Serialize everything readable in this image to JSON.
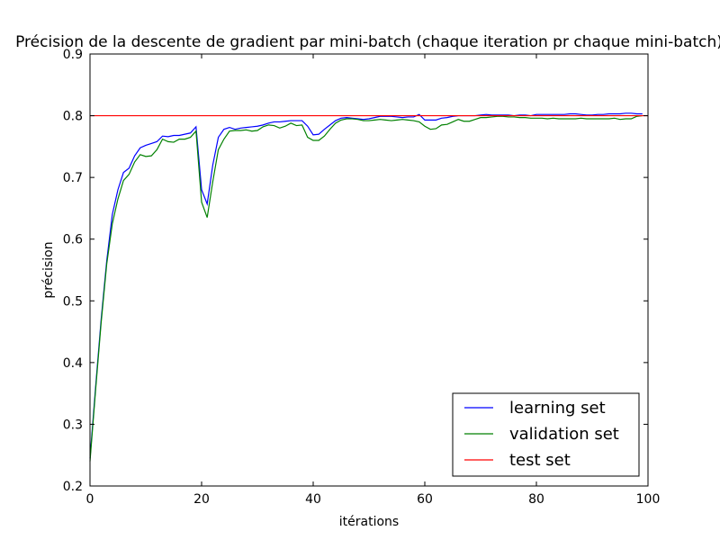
{
  "chart_data": {
    "type": "line",
    "title": "Précision de la descente de gradient par mini-batch (chaque iteration pr chaque mini-batch)",
    "xlabel": "itérations",
    "ylabel": "précision",
    "xlim": [
      0,
      100
    ],
    "ylim": [
      0.2,
      0.9
    ],
    "xticks": [
      "0",
      "20",
      "40",
      "60",
      "80",
      "100"
    ],
    "yticks": [
      "0.2",
      "0.3",
      "0.4",
      "0.5",
      "0.6",
      "0.7",
      "0.8",
      "0.9"
    ],
    "grid": false,
    "legend_position": "lower-right",
    "series": [
      {
        "name": "learning set",
        "color": "#0000ff",
        "x": [
          0,
          1,
          2,
          3,
          4,
          5,
          6,
          7,
          8,
          9,
          10,
          11,
          12,
          13,
          14,
          15,
          16,
          17,
          18,
          19,
          20,
          21,
          22,
          23,
          24,
          25,
          26,
          27,
          28,
          29,
          30,
          31,
          32,
          33,
          34,
          35,
          36,
          37,
          38,
          39,
          40,
          41,
          42,
          43,
          44,
          45,
          46,
          47,
          48,
          49,
          50,
          51,
          52,
          53,
          54,
          55,
          56,
          57,
          58,
          59,
          60,
          61,
          62,
          63,
          64,
          65,
          66,
          67,
          68,
          69,
          70,
          71,
          72,
          73,
          74,
          75,
          76,
          77,
          78,
          79,
          80,
          81,
          82,
          83,
          84,
          85,
          86,
          87,
          88,
          89,
          90,
          91,
          92,
          93,
          94,
          95,
          96,
          97,
          98,
          99
        ],
        "y": [
          0.245,
          0.36,
          0.47,
          0.565,
          0.64,
          0.68,
          0.708,
          0.715,
          0.735,
          0.748,
          0.752,
          0.755,
          0.758,
          0.767,
          0.766,
          0.768,
          0.768,
          0.77,
          0.772,
          0.782,
          0.68,
          0.657,
          0.72,
          0.765,
          0.778,
          0.781,
          0.778,
          0.78,
          0.781,
          0.782,
          0.783,
          0.785,
          0.788,
          0.79,
          0.79,
          0.791,
          0.792,
          0.792,
          0.792,
          0.783,
          0.769,
          0.77,
          0.778,
          0.785,
          0.792,
          0.796,
          0.797,
          0.796,
          0.795,
          0.794,
          0.795,
          0.797,
          0.799,
          0.799,
          0.799,
          0.798,
          0.797,
          0.798,
          0.798,
          0.802,
          0.793,
          0.793,
          0.793,
          0.796,
          0.797,
          0.799,
          0.8,
          0.8,
          0.8,
          0.8,
          0.801,
          0.802,
          0.801,
          0.801,
          0.801,
          0.801,
          0.8,
          0.801,
          0.801,
          0.8,
          0.802,
          0.802,
          0.802,
          0.802,
          0.802,
          0.802,
          0.803,
          0.803,
          0.802,
          0.801,
          0.801,
          0.802,
          0.802,
          0.803,
          0.803,
          0.803,
          0.804,
          0.804,
          0.803,
          0.803
        ]
      },
      {
        "name": "validation set",
        "color": "#008000",
        "x": [
          0,
          1,
          2,
          3,
          4,
          5,
          6,
          7,
          8,
          9,
          10,
          11,
          12,
          13,
          14,
          15,
          16,
          17,
          18,
          19,
          20,
          21,
          22,
          23,
          24,
          25,
          26,
          27,
          28,
          29,
          30,
          31,
          32,
          33,
          34,
          35,
          36,
          37,
          38,
          39,
          40,
          41,
          42,
          43,
          44,
          45,
          46,
          47,
          48,
          49,
          50,
          51,
          52,
          53,
          54,
          55,
          56,
          57,
          58,
          59,
          60,
          61,
          62,
          63,
          64,
          65,
          66,
          67,
          68,
          69,
          70,
          71,
          72,
          73,
          74,
          75,
          76,
          77,
          78,
          79,
          80,
          81,
          82,
          83,
          84,
          85,
          86,
          87,
          88,
          89,
          90,
          91,
          92,
          93,
          94,
          95,
          96,
          97,
          98,
          99
        ],
        "y": [
          0.24,
          0.355,
          0.465,
          0.56,
          0.625,
          0.665,
          0.695,
          0.705,
          0.725,
          0.737,
          0.734,
          0.735,
          0.745,
          0.762,
          0.758,
          0.757,
          0.762,
          0.762,
          0.765,
          0.775,
          0.66,
          0.635,
          0.693,
          0.745,
          0.762,
          0.775,
          0.776,
          0.776,
          0.777,
          0.775,
          0.776,
          0.782,
          0.785,
          0.784,
          0.78,
          0.783,
          0.788,
          0.784,
          0.785,
          0.765,
          0.76,
          0.76,
          0.767,
          0.778,
          0.788,
          0.793,
          0.795,
          0.795,
          0.794,
          0.792,
          0.792,
          0.793,
          0.794,
          0.793,
          0.792,
          0.793,
          0.794,
          0.793,
          0.792,
          0.79,
          0.783,
          0.778,
          0.779,
          0.785,
          0.786,
          0.79,
          0.794,
          0.791,
          0.791,
          0.794,
          0.797,
          0.797,
          0.798,
          0.799,
          0.799,
          0.798,
          0.798,
          0.797,
          0.797,
          0.796,
          0.796,
          0.796,
          0.795,
          0.796,
          0.795,
          0.795,
          0.795,
          0.795,
          0.796,
          0.795,
          0.795,
          0.795,
          0.795,
          0.795,
          0.796,
          0.794,
          0.795,
          0.795,
          0.799,
          0.8
        ]
      },
      {
        "name": "test set",
        "color": "#ff0000",
        "x": [
          0,
          100
        ],
        "y": [
          0.8,
          0.8
        ]
      }
    ]
  }
}
